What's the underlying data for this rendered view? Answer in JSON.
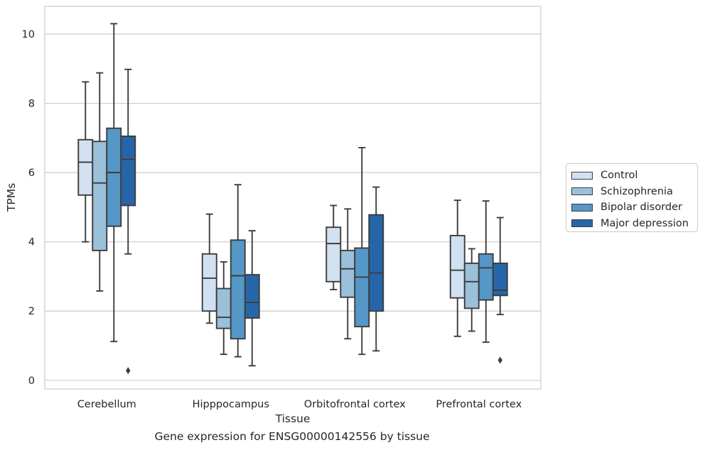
{
  "caption": "Gene expression for ENSG00000142556 by tissue",
  "chart_data": {
    "type": "box",
    "xlabel": "Tissue",
    "ylabel": "TPMs",
    "ylim": [
      -0.25,
      10.8
    ],
    "yticks": [
      0,
      2,
      4,
      6,
      8,
      10
    ],
    "grid": "horizontal",
    "legend_position": "right",
    "categories": [
      "Cerebellum",
      "Hipppocampus",
      "Orbitofrontal cortex",
      "Prefrontal cortex"
    ],
    "series": [
      {
        "name": "Control",
        "color": "#d1e1f1",
        "boxes": [
          {
            "min": 4.0,
            "q1": 5.35,
            "median": 6.3,
            "q3": 6.95,
            "max": 8.62,
            "outliers": []
          },
          {
            "min": 1.65,
            "q1": 2.0,
            "median": 2.95,
            "q3": 3.65,
            "max": 4.8,
            "outliers": []
          },
          {
            "min": 2.62,
            "q1": 2.85,
            "median": 3.95,
            "q3": 4.42,
            "max": 5.05,
            "outliers": []
          },
          {
            "min": 1.27,
            "q1": 2.38,
            "median": 3.18,
            "q3": 4.18,
            "max": 5.2,
            "outliers": []
          }
        ]
      },
      {
        "name": "Schizophrenia",
        "color": "#9ac0da",
        "boxes": [
          {
            "min": 2.58,
            "q1": 3.75,
            "median": 5.7,
            "q3": 6.9,
            "max": 8.88,
            "outliers": []
          },
          {
            "min": 0.75,
            "q1": 1.5,
            "median": 1.82,
            "q3": 2.65,
            "max": 3.42,
            "outliers": []
          },
          {
            "min": 1.2,
            "q1": 2.4,
            "median": 3.22,
            "q3": 3.75,
            "max": 4.95,
            "outliers": []
          },
          {
            "min": 1.42,
            "q1": 2.08,
            "median": 2.85,
            "q3": 3.38,
            "max": 3.8,
            "outliers": []
          }
        ]
      },
      {
        "name": "Bipolar disorder",
        "color": "#5597c6",
        "boxes": [
          {
            "min": 1.12,
            "q1": 4.45,
            "median": 6.0,
            "q3": 7.28,
            "max": 10.3,
            "outliers": []
          },
          {
            "min": 0.68,
            "q1": 1.2,
            "median": 3.02,
            "q3": 4.05,
            "max": 5.65,
            "outliers": []
          },
          {
            "min": 0.75,
            "q1": 1.55,
            "median": 2.98,
            "q3": 3.82,
            "max": 6.72,
            "outliers": []
          },
          {
            "min": 1.1,
            "q1": 2.32,
            "median": 3.25,
            "q3": 3.65,
            "max": 5.18,
            "outliers": []
          }
        ]
      },
      {
        "name": "Major depression",
        "color": "#2666a8",
        "boxes": [
          {
            "min": 3.65,
            "q1": 5.05,
            "median": 6.38,
            "q3": 7.05,
            "max": 8.98,
            "outliers": [
              0.28
            ]
          },
          {
            "min": 0.42,
            "q1": 1.8,
            "median": 2.25,
            "q3": 3.05,
            "max": 4.32,
            "outliers": []
          },
          {
            "min": 0.85,
            "q1": 2.0,
            "median": 3.1,
            "q3": 4.78,
            "max": 5.58,
            "outliers": []
          },
          {
            "min": 1.9,
            "q1": 2.45,
            "median": 2.6,
            "q3": 3.38,
            "max": 4.7,
            "outliers": [
              0.58
            ]
          }
        ]
      }
    ]
  }
}
